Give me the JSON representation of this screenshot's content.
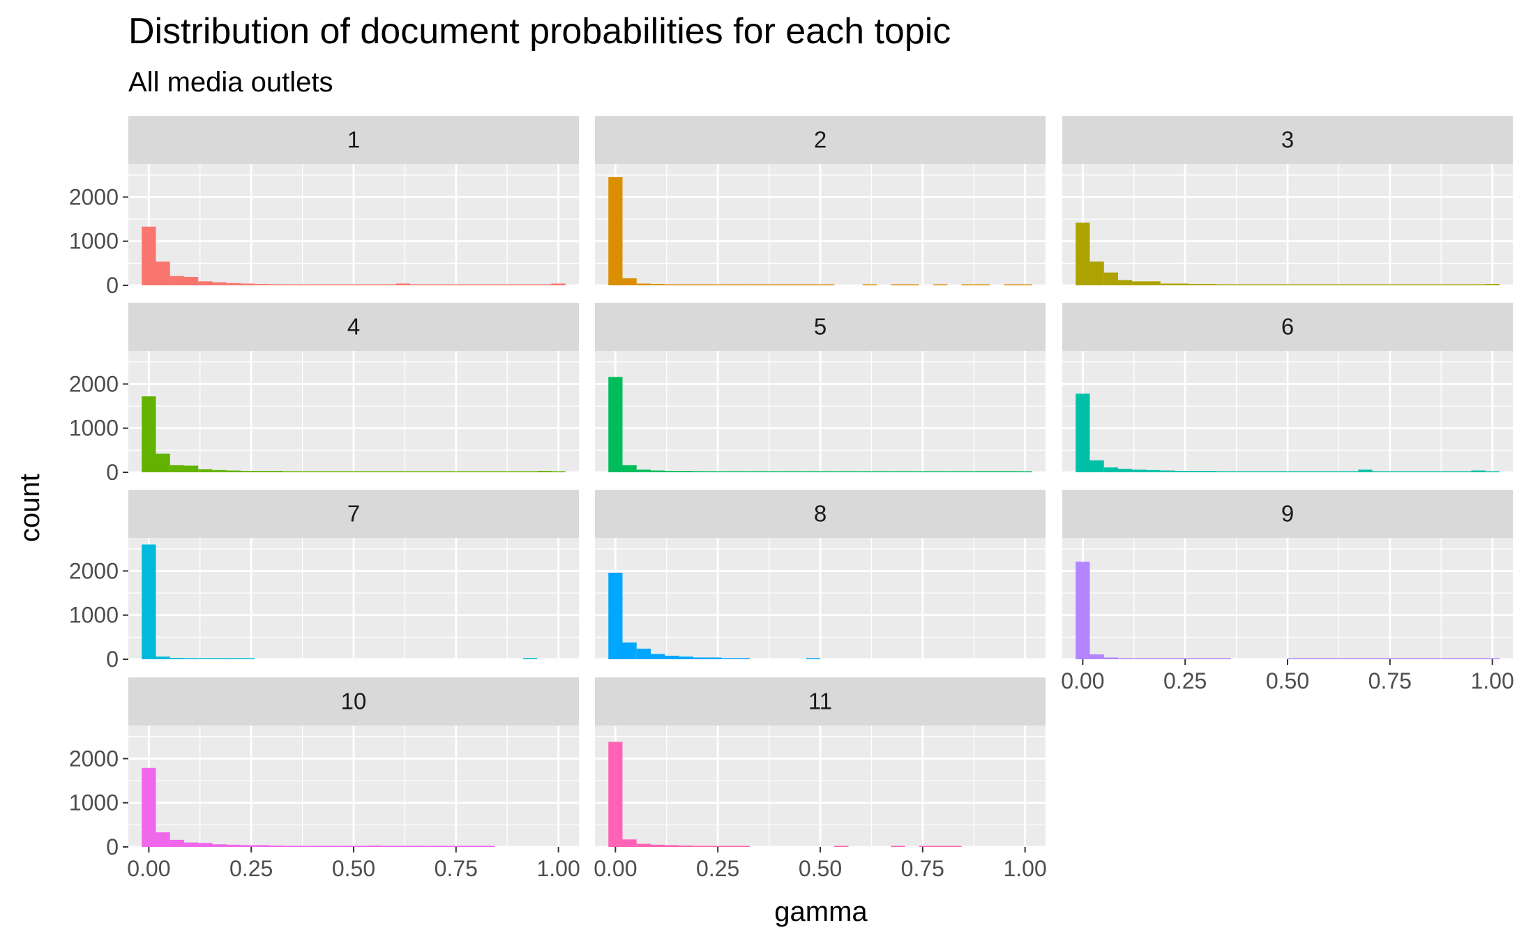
{
  "chart_data": {
    "type": "bar",
    "title": "Distribution of document probabilities for each topic",
    "subtitle": "All media outlets",
    "xlabel": "gamma",
    "ylabel": "count",
    "xlim": [
      -0.05,
      1.05
    ],
    "ylim": [
      0,
      2750
    ],
    "x_ticks": [
      "0.00",
      "0.25",
      "0.50",
      "0.75",
      "1.00"
    ],
    "x_tick_values": [
      0,
      0.25,
      0.5,
      0.75,
      1.0
    ],
    "y_ticks": [
      "0",
      "1000",
      "2000"
    ],
    "y_tick_values": [
      0,
      1000,
      2000
    ],
    "bin_centers": [
      0,
      0.0345,
      0.069,
      0.1034,
      0.1379,
      0.1724,
      0.2069,
      0.2414,
      0.2759,
      0.3103,
      0.3448,
      0.3793,
      0.4138,
      0.4483,
      0.4828,
      0.5172,
      0.5517,
      0.5862,
      0.6207,
      0.6552,
      0.6897,
      0.7241,
      0.7586,
      0.7931,
      0.8276,
      0.8621,
      0.8966,
      0.931,
      0.9655,
      1.0
    ],
    "grid": true,
    "legend": "none",
    "panels": [
      {
        "label": "1",
        "color": "#F8766D",
        "values": [
          1330,
          540,
          210,
          190,
          90,
          70,
          50,
          40,
          30,
          25,
          15,
          15,
          15,
          15,
          15,
          15,
          15,
          15,
          40,
          20,
          20,
          15,
          15,
          15,
          15,
          15,
          15,
          15,
          20,
          40
        ]
      },
      {
        "label": "2",
        "color": "#DB8E00",
        "values": [
          2450,
          160,
          40,
          30,
          20,
          15,
          15,
          10,
          10,
          10,
          10,
          10,
          10,
          10,
          10,
          10,
          0,
          0,
          10,
          0,
          10,
          10,
          0,
          10,
          0,
          10,
          10,
          0,
          10,
          10
        ]
      },
      {
        "label": "3",
        "color": "#AEA200",
        "values": [
          1420,
          540,
          290,
          120,
          90,
          90,
          40,
          40,
          30,
          30,
          20,
          15,
          15,
          10,
          10,
          10,
          10,
          10,
          10,
          10,
          10,
          10,
          10,
          10,
          10,
          10,
          10,
          10,
          10,
          30
        ]
      },
      {
        "label": "4",
        "color": "#64B200",
        "values": [
          1720,
          420,
          160,
          150,
          70,
          50,
          40,
          30,
          30,
          30,
          20,
          20,
          20,
          15,
          15,
          20,
          15,
          15,
          15,
          15,
          15,
          15,
          15,
          15,
          15,
          15,
          15,
          15,
          30,
          15
        ]
      },
      {
        "label": "5",
        "color": "#00BD5C",
        "values": [
          2160,
          160,
          60,
          40,
          30,
          30,
          25,
          20,
          20,
          20,
          20,
          20,
          20,
          20,
          20,
          20,
          20,
          20,
          20,
          20,
          20,
          20,
          20,
          20,
          20,
          20,
          25,
          25,
          25,
          20
        ]
      },
      {
        "label": "6",
        "color": "#00C1A7",
        "values": [
          1780,
          270,
          110,
          80,
          60,
          50,
          40,
          30,
          30,
          30,
          20,
          20,
          20,
          20,
          20,
          20,
          20,
          20,
          20,
          20,
          60,
          20,
          20,
          20,
          20,
          20,
          20,
          20,
          40,
          20
        ]
      },
      {
        "label": "7",
        "color": "#00BADE",
        "values": [
          2600,
          60,
          30,
          20,
          15,
          10,
          10,
          10,
          0,
          0,
          0,
          0,
          0,
          0,
          0,
          0,
          0,
          0,
          0,
          0,
          0,
          0,
          0,
          0,
          0,
          0,
          0,
          25,
          0,
          0
        ]
      },
      {
        "label": "8",
        "color": "#00A6FF",
        "values": [
          1960,
          380,
          240,
          120,
          80,
          60,
          40,
          40,
          20,
          20,
          0,
          0,
          0,
          0,
          20,
          0,
          0,
          0,
          0,
          0,
          0,
          0,
          0,
          0,
          0,
          0,
          0,
          0,
          0,
          0
        ]
      },
      {
        "label": "9",
        "color": "#B385FF",
        "values": [
          2210,
          110,
          40,
          20,
          15,
          15,
          15,
          15,
          15,
          15,
          15,
          0,
          0,
          0,
          0,
          10,
          10,
          10,
          10,
          20,
          10,
          20,
          20,
          10,
          10,
          10,
          10,
          10,
          10,
          10
        ]
      },
      {
        "label": "10",
        "color": "#EF67EB",
        "values": [
          1790,
          330,
          160,
          100,
          90,
          60,
          50,
          40,
          40,
          30,
          25,
          20,
          20,
          20,
          20,
          20,
          30,
          15,
          20,
          25,
          15,
          15,
          15,
          15,
          15,
          0,
          0,
          0,
          0,
          0
        ]
      },
      {
        "label": "11",
        "color": "#FF63B6",
        "values": [
          2380,
          170,
          70,
          50,
          40,
          30,
          20,
          20,
          20,
          20,
          0,
          0,
          0,
          0,
          0,
          0,
          15,
          0,
          0,
          0,
          15,
          0,
          15,
          15,
          15,
          0,
          0,
          0,
          0,
          0
        ]
      }
    ]
  }
}
